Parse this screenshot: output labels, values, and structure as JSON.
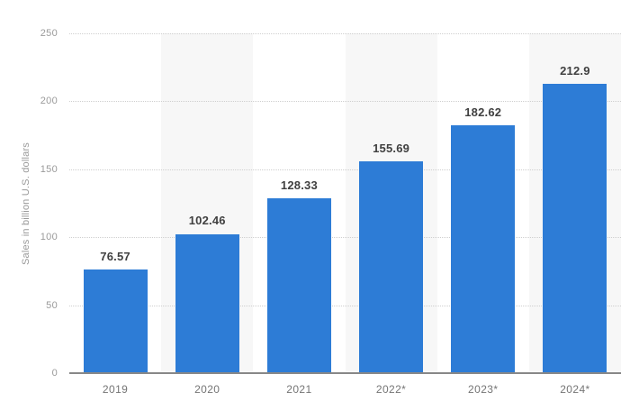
{
  "chart_data": {
    "type": "bar",
    "title": "",
    "categories": [
      "2019",
      "2020",
      "2021",
      "2022*",
      "2023*",
      "2024*"
    ],
    "values": [
      76.57,
      102.46,
      128.33,
      155.69,
      182.62,
      212.9
    ],
    "value_labels": [
      "76.57",
      "102.46",
      "128.33",
      "155.69",
      "182.62",
      "212.9"
    ],
    "xlabel": "",
    "ylabel": "Sales in billion U.S. dollars",
    "yticks": [
      0,
      50,
      100,
      150,
      200,
      250
    ],
    "ylim": [
      0,
      250
    ],
    "grid": "horizontal-dotted",
    "legend_position": "none",
    "background_stripes": "alternating columns, even columns white, odd columns light gray",
    "colors": {
      "bar": "#2d7cd6",
      "column_stripe": "#f7f7f7",
      "gridline": "#cfcfcf",
      "axis_line": "#888888",
      "value_label_text": "#404040",
      "x_tick_text": "#757575",
      "y_tick_text": "#9a9a9a",
      "background": "#ffffff"
    }
  }
}
